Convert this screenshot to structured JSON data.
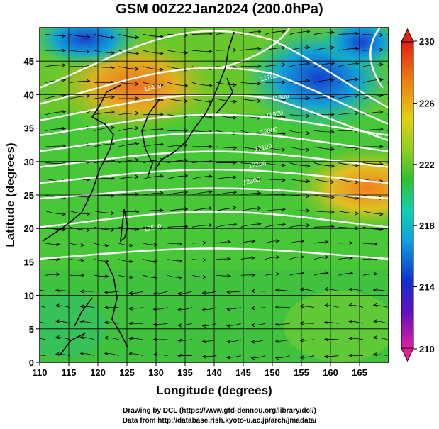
{
  "title": "GSM 00Z22Jan2024 (200.0hPa)",
  "map": {
    "xlabel": "Longitude (degrees)",
    "ylabel": "Latitude  (degrees)",
    "x_range": [
      110,
      170
    ],
    "y_range": [
      0,
      50
    ],
    "x_ticks": [
      110,
      115,
      120,
      125,
      130,
      135,
      140,
      145,
      150,
      155,
      160,
      165
    ],
    "y_ticks": [
      0,
      5,
      10,
      15,
      20,
      25,
      30,
      35,
      40,
      45
    ],
    "field": "temperature shading with wind streamlines and height contours"
  },
  "contour_labels": [
    "11700",
    "11800",
    "11900",
    "12000",
    "12100",
    "12200",
    "12300",
    "12400",
    "12500"
  ],
  "colorbar": {
    "ticks": [
      230,
      226,
      222,
      218,
      214,
      210
    ],
    "range": [
      210,
      230
    ]
  },
  "credits": {
    "line1": "Drawing by DCL (https://www.gfd-dennou.org/library/dcl/)",
    "line2": "Data from http://database.rish.kyoto-u.ac.jp/arch/jmadata/"
  }
}
